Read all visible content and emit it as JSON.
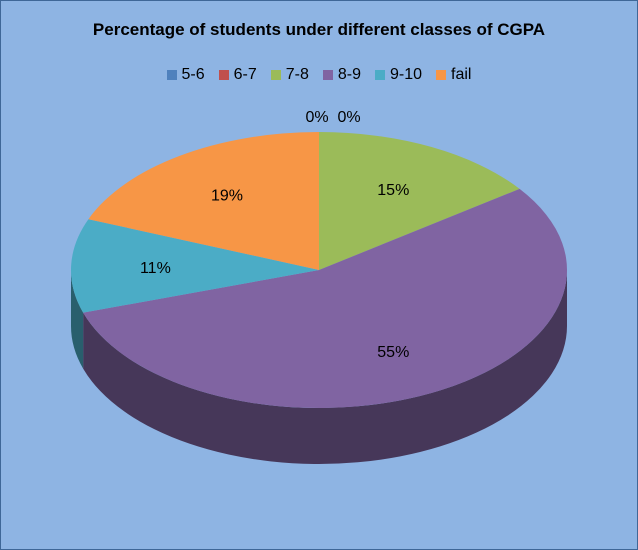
{
  "chart_data": {
    "type": "pie",
    "title": "Percentage of students under different classes of CGPA",
    "categories": [
      "5-6",
      "6-7",
      "7-8",
      "8-9",
      "9-10",
      "fail"
    ],
    "values": [
      0,
      0,
      15,
      55,
      11,
      19
    ],
    "data_labels": [
      "0%",
      "0%",
      "15%",
      "55%",
      "11%",
      "19%"
    ],
    "colors": [
      "#4f81bd",
      "#c0504d",
      "#9bbb59",
      "#8064a2",
      "#4bacc6",
      "#f79646"
    ],
    "legend_position": "top",
    "style": "3d"
  }
}
